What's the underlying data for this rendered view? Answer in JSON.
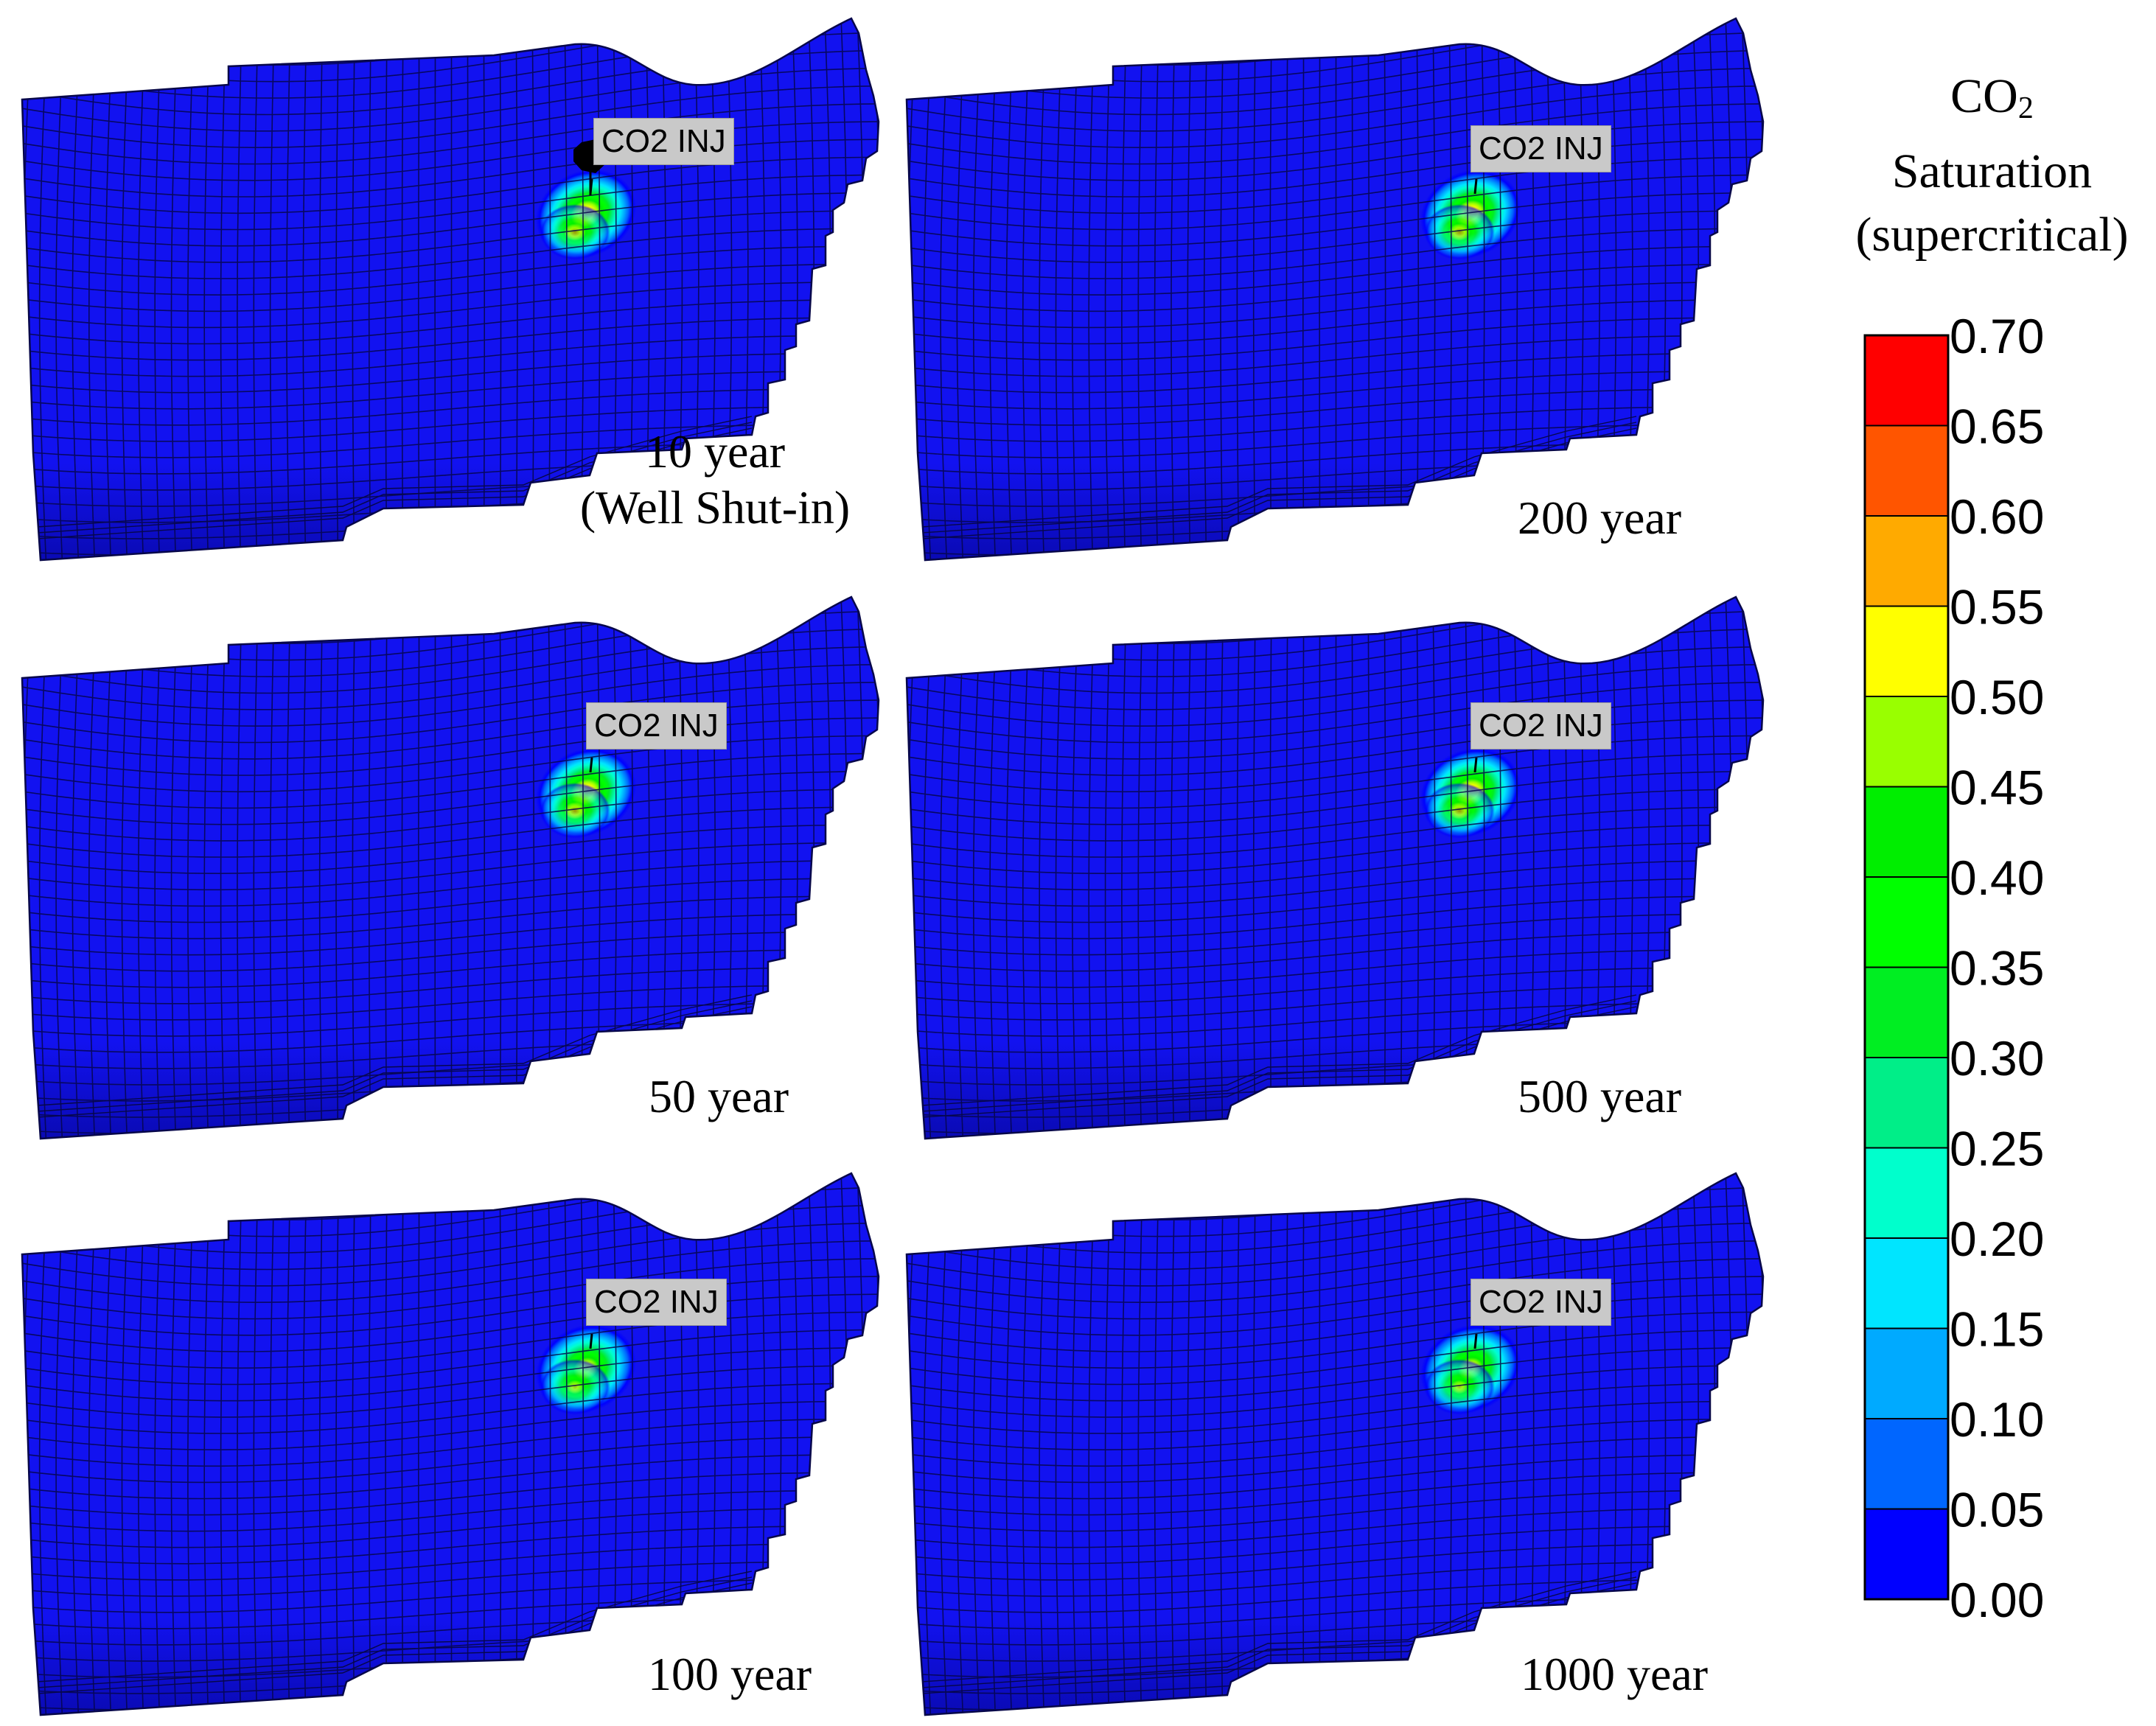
{
  "colors": {
    "reservoir": "#1212f0",
    "reservoir_dark": "#0a0ab4",
    "mesh_line": "#07074a",
    "well_marker": "#000000"
  },
  "panels": [
    {
      "injector_label": "CO2 INJ",
      "time_label_lines": [
        "10 year",
        "(Well Shut-in)"
      ],
      "shows_well_marker": true,
      "plume_peak_saturation": 0.6
    },
    {
      "injector_label": "CO2 INJ",
      "time_label_lines": [
        "200 year"
      ],
      "shows_well_marker": false,
      "plume_peak_saturation": 0.6
    },
    {
      "injector_label": "CO2 INJ",
      "time_label_lines": [
        "50 year"
      ],
      "shows_well_marker": false,
      "plume_peak_saturation": 0.6
    },
    {
      "injector_label": "CO2 INJ",
      "time_label_lines": [
        "500 year"
      ],
      "shows_well_marker": false,
      "plume_peak_saturation": 0.6
    },
    {
      "injector_label": "CO2 INJ",
      "time_label_lines": [
        "100 year"
      ],
      "shows_well_marker": false,
      "plume_peak_saturation": 0.55
    },
    {
      "injector_label": "CO2 INJ",
      "time_label_lines": [
        "1000 year"
      ],
      "shows_well_marker": false,
      "plume_peak_saturation": 0.55
    }
  ],
  "legend": {
    "title_lines": [
      "CO",
      "Saturation",
      "(supercritical)"
    ],
    "title_subscript": "2",
    "ticks": [
      "0.70",
      "0.65",
      "0.60",
      "0.55",
      "0.50",
      "0.45",
      "0.40",
      "0.35",
      "0.30",
      "0.25",
      "0.20",
      "0.15",
      "0.10",
      "0.05",
      "0.00"
    ],
    "range": [
      0.0,
      0.7
    ],
    "bands": [
      {
        "from": 0.65,
        "to": 0.7,
        "color": "#ff0000"
      },
      {
        "from": 0.6,
        "to": 0.65,
        "color": "#ff5500"
      },
      {
        "from": 0.55,
        "to": 0.6,
        "color": "#ffaa00"
      },
      {
        "from": 0.5,
        "to": 0.55,
        "color": "#ffff00"
      },
      {
        "from": 0.45,
        "to": 0.5,
        "color": "#99ff00"
      },
      {
        "from": 0.4,
        "to": 0.45,
        "color": "#00ee00"
      },
      {
        "from": 0.35,
        "to": 0.4,
        "color": "#00ff00"
      },
      {
        "from": 0.3,
        "to": 0.35,
        "color": "#00ee22"
      },
      {
        "from": 0.25,
        "to": 0.3,
        "color": "#00ee88"
      },
      {
        "from": 0.2,
        "to": 0.25,
        "color": "#00ffcc"
      },
      {
        "from": 0.15,
        "to": 0.2,
        "color": "#00e5ff"
      },
      {
        "from": 0.1,
        "to": 0.15,
        "color": "#00aaff"
      },
      {
        "from": 0.05,
        "to": 0.1,
        "color": "#0066ff"
      },
      {
        "from": 0.0,
        "to": 0.05,
        "color": "#0000ff"
      }
    ]
  }
}
